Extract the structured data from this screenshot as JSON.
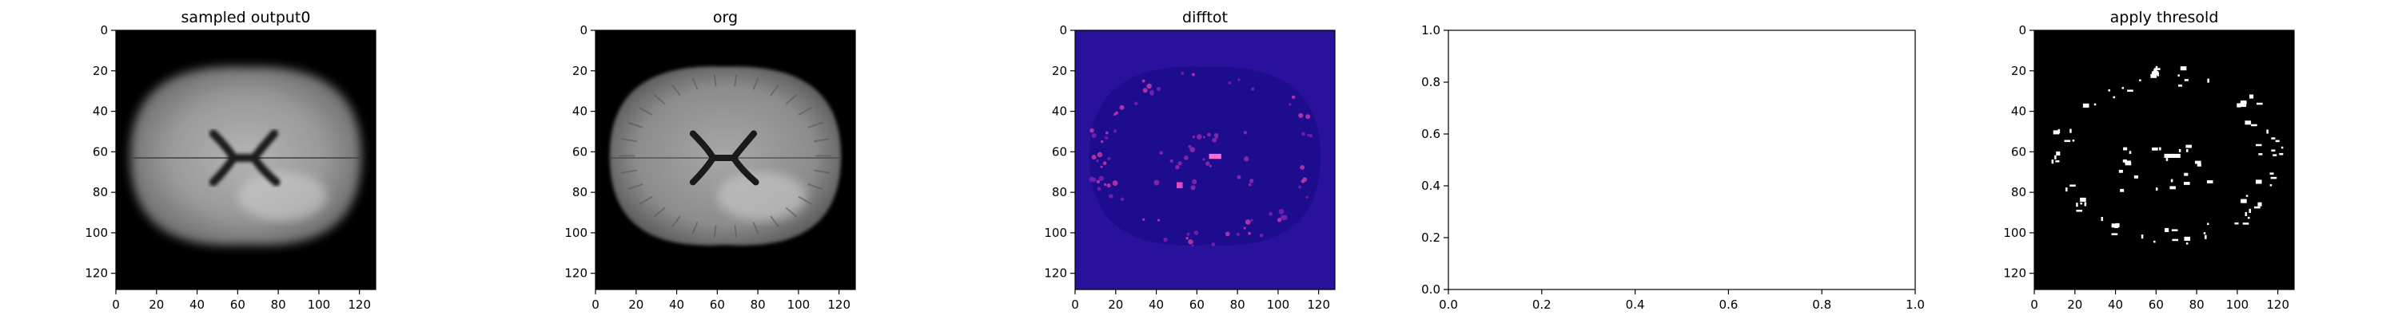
{
  "figure": {
    "background": "#ffffff"
  },
  "chart_data": [
    {
      "type": "heatmap",
      "title": "sampled output0",
      "content": "grayscale brain MRI axial slice (blurred)",
      "colormap": "gray",
      "xticks": [
        "0",
        "20",
        "40",
        "60",
        "80",
        "100",
        "120"
      ],
      "yticks": [
        "0",
        "20",
        "40",
        "60",
        "80",
        "100",
        "120"
      ],
      "xlim": [
        0,
        128
      ],
      "ylim": [
        128,
        0
      ]
    },
    {
      "type": "heatmap",
      "title": "org",
      "content": "grayscale brain MRI axial slice",
      "colormap": "gray",
      "xticks": [
        "0",
        "20",
        "40",
        "60",
        "80",
        "100",
        "120"
      ],
      "yticks": [
        "0",
        "20",
        "40",
        "60",
        "80",
        "100",
        "120"
      ],
      "xlim": [
        0,
        128
      ],
      "ylim": [
        128,
        0
      ]
    },
    {
      "type": "heatmap",
      "title": "difftot",
      "content": "difference map; low values dark blue, high values magenta/pink",
      "colormap": "plasma-like",
      "xticks": [
        "0",
        "20",
        "40",
        "60",
        "80",
        "100",
        "120"
      ],
      "yticks": [
        "0",
        "20",
        "40",
        "60",
        "80",
        "100",
        "120"
      ],
      "xlim": [
        0,
        128
      ],
      "ylim": [
        128,
        0
      ]
    },
    {
      "type": "scatter",
      "title": "",
      "series": [],
      "xticks": [
        "0.0",
        "0.2",
        "0.4",
        "0.6",
        "0.8",
        "1.0"
      ],
      "yticks": [
        "0.0",
        "0.2",
        "0.4",
        "0.6",
        "0.8",
        "1.0"
      ],
      "xlim": [
        0,
        1
      ],
      "ylim": [
        0,
        1
      ]
    },
    {
      "type": "heatmap",
      "title": "apply thresold",
      "content": "binary thresholded mask; white speckles on black",
      "colormap": "binary",
      "xticks": [
        "0",
        "20",
        "40",
        "60",
        "80",
        "100",
        "120"
      ],
      "yticks": [
        "0",
        "20",
        "40",
        "60",
        "80",
        "100",
        "120"
      ],
      "xlim": [
        0,
        128
      ],
      "ylim": [
        128,
        0
      ]
    }
  ]
}
